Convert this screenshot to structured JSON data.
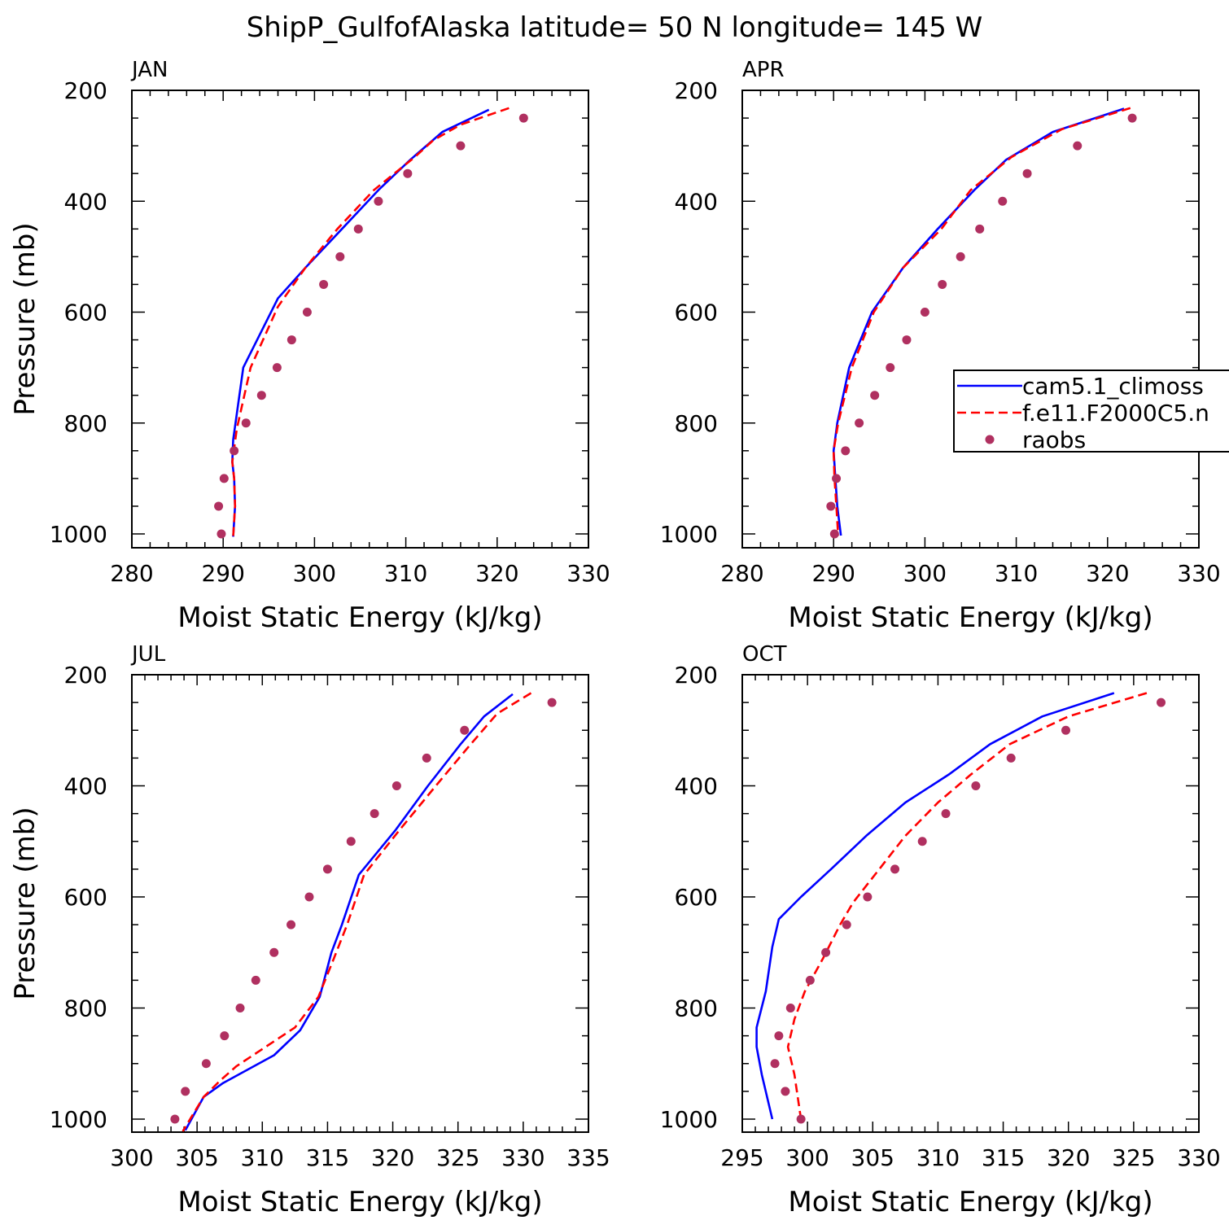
{
  "title": "ShipP_GulfofAlaska  latitude= 50 N longitude= 145 W",
  "colors": {
    "model1": "#0000ff",
    "model2": "#ff0000",
    "obs": "#b03060",
    "axes": "#000000"
  },
  "legend": {
    "placement": "right of APR panel",
    "entries": [
      {
        "label": "cam5.1_climoss",
        "style": "solid",
        "color_key": "model1"
      },
      {
        "label": "f.e11.F2000C5.n",
        "style": "dashed",
        "color_key": "model2"
      },
      {
        "label": "raobs",
        "style": "dots",
        "color_key": "obs"
      }
    ]
  },
  "chart_data": [
    {
      "panel": "JAN",
      "type": "line",
      "xlabel": "Moist Static Energy (kJ/kg)",
      "ylabel": "Pressure (mb)",
      "xlim": [
        280,
        330
      ],
      "ylim": [
        1025,
        200
      ],
      "y_reversed": true,
      "xticks": [
        "280",
        "290",
        "300",
        "310",
        "320",
        "330"
      ],
      "yticks": [
        "200",
        "400",
        "600",
        "800",
        "1000"
      ],
      "series": [
        {
          "key": "model1",
          "line": "solid",
          "points": [
            [
              319.1,
              235
            ],
            [
              314,
              275
            ],
            [
              310.5,
              325
            ],
            [
              307,
              380
            ],
            [
              303,
              450
            ],
            [
              299,
              520
            ],
            [
              296,
              575
            ],
            [
              292.2,
              700
            ],
            [
              291.1,
              830
            ],
            [
              291,
              870
            ],
            [
              291.2,
              900
            ],
            [
              291.3,
              950
            ],
            [
              291.1,
              1005
            ]
          ]
        },
        {
          "key": "model2",
          "line": "dashed",
          "points": [
            [
              321.3,
              232
            ],
            [
              316,
              262
            ],
            [
              313,
              290
            ],
            [
              311,
              320
            ],
            [
              306.5,
              380
            ],
            [
              302.5,
              450
            ],
            [
              299,
              520
            ],
            [
              296,
              590
            ],
            [
              293,
              700
            ],
            [
              291.5,
              810
            ],
            [
              291,
              870
            ],
            [
              291.2,
              900
            ],
            [
              291.3,
              950
            ],
            [
              291.1,
              1005
            ]
          ]
        },
        {
          "key": "obs",
          "line": "none",
          "points": [
            [
              322.9,
              250
            ],
            [
              316,
              300
            ],
            [
              310.2,
              350
            ],
            [
              307,
              400
            ],
            [
              304.8,
              450
            ],
            [
              302.8,
              500
            ],
            [
              301,
              550
            ],
            [
              299.2,
              600
            ],
            [
              297.5,
              650
            ],
            [
              295.9,
              700
            ],
            [
              294.2,
              750
            ],
            [
              292.5,
              800
            ],
            [
              291.2,
              850
            ],
            [
              290.1,
              900
            ],
            [
              289.5,
              950
            ],
            [
              289.8,
              1000
            ]
          ]
        }
      ]
    },
    {
      "panel": "APR",
      "type": "line",
      "xlabel": "Moist Static Energy (kJ/kg)",
      "ylabel": "",
      "xlim": [
        280,
        330
      ],
      "ylim": [
        1025,
        200
      ],
      "y_reversed": true,
      "xticks": [
        "280",
        "290",
        "300",
        "310",
        "320",
        "330"
      ],
      "yticks": [
        "200",
        "400",
        "600",
        "800",
        "1000"
      ],
      "series": [
        {
          "key": "model1",
          "line": "solid",
          "points": [
            [
              321.8,
              233
            ],
            [
              314,
              275
            ],
            [
              308.9,
              325
            ],
            [
              305.4,
              380
            ],
            [
              301.4,
              450
            ],
            [
              297.6,
              520
            ],
            [
              294.2,
              600
            ],
            [
              291.7,
              700
            ],
            [
              290.4,
              800
            ],
            [
              290,
              850
            ],
            [
              290.2,
              900
            ],
            [
              290.4,
              950
            ],
            [
              290.8,
              1003
            ]
          ]
        },
        {
          "key": "model2",
          "line": "dashed",
          "points": [
            [
              322.5,
              232
            ],
            [
              315,
              270
            ],
            [
              309.5,
              320
            ],
            [
              305,
              380
            ],
            [
              301.8,
              450
            ],
            [
              297.6,
              520
            ],
            [
              294.4,
              600
            ],
            [
              292,
              700
            ],
            [
              290.5,
              800
            ],
            [
              290,
              850
            ],
            [
              290.1,
              900
            ],
            [
              290.3,
              950
            ],
            [
              290.5,
              1003
            ]
          ]
        },
        {
          "key": "obs",
          "line": "none",
          "points": [
            [
              322.7,
              250
            ],
            [
              316.7,
              300
            ],
            [
              311.2,
              350
            ],
            [
              308.5,
              400
            ],
            [
              306,
              450
            ],
            [
              303.9,
              500
            ],
            [
              301.9,
              550
            ],
            [
              300,
              600
            ],
            [
              298,
              650
            ],
            [
              296.2,
              700
            ],
            [
              294.5,
              750
            ],
            [
              292.8,
              800
            ],
            [
              291.3,
              850
            ],
            [
              290.3,
              900
            ],
            [
              289.7,
              950
            ],
            [
              290.1,
              1000
            ]
          ]
        }
      ]
    },
    {
      "panel": "JUL",
      "type": "line",
      "xlabel": "Moist Static Energy (kJ/kg)",
      "ylabel": "Pressure (mb)",
      "xlim": [
        300,
        335
      ],
      "ylim": [
        1025,
        200
      ],
      "y_reversed": true,
      "xticks": [
        "300",
        "305",
        "310",
        "315",
        "320",
        "325",
        "330",
        "335"
      ],
      "yticks": [
        "200",
        "400",
        "600",
        "800",
        "1000"
      ],
      "series": [
        {
          "key": "model1",
          "line": "solid",
          "points": [
            [
              329.2,
              235
            ],
            [
              327,
              275
            ],
            [
              325.2,
              325
            ],
            [
              322.7,
              400
            ],
            [
              320.2,
              480
            ],
            [
              317.4,
              560
            ],
            [
              316.1,
              650
            ],
            [
              315.3,
              700
            ],
            [
              314.4,
              780
            ],
            [
              312.9,
              840
            ],
            [
              310.9,
              885
            ],
            [
              307,
              935
            ],
            [
              305.5,
              960
            ],
            [
              304.1,
              1020
            ]
          ]
        },
        {
          "key": "model2",
          "line": "dashed",
          "points": [
            [
              330.6,
              233
            ],
            [
              328,
              270
            ],
            [
              325.8,
              330
            ],
            [
              323.3,
              400
            ],
            [
              320.5,
              480
            ],
            [
              317.8,
              560
            ],
            [
              316.5,
              650
            ],
            [
              315.5,
              710
            ],
            [
              314.3,
              780
            ],
            [
              312.5,
              835
            ],
            [
              308,
              905
            ],
            [
              306.8,
              930
            ],
            [
              305.5,
              960
            ],
            [
              303.9,
              1022
            ]
          ]
        },
        {
          "key": "obs",
          "line": "none",
          "points": [
            [
              332.2,
              250
            ],
            [
              325.5,
              300
            ],
            [
              322.6,
              350
            ],
            [
              320.3,
              400
            ],
            [
              318.6,
              450
            ],
            [
              316.8,
              500
            ],
            [
              315,
              550
            ],
            [
              313.6,
              600
            ],
            [
              312.2,
              650
            ],
            [
              310.9,
              700
            ],
            [
              309.5,
              750
            ],
            [
              308.3,
              800
            ],
            [
              307.1,
              850
            ],
            [
              305.7,
              900
            ],
            [
              304.1,
              950
            ],
            [
              303.3,
              1000
            ]
          ]
        }
      ]
    },
    {
      "panel": "OCT",
      "type": "line",
      "xlabel": "Moist Static Energy (kJ/kg)",
      "ylabel": "",
      "xlim": [
        295,
        330
      ],
      "ylim": [
        1025,
        200
      ],
      "y_reversed": true,
      "xticks": [
        "295",
        "300",
        "305",
        "310",
        "315",
        "320",
        "325",
        "330"
      ],
      "yticks": [
        "200",
        "400",
        "600",
        "800",
        "1000"
      ],
      "series": [
        {
          "key": "model1",
          "line": "solid",
          "points": [
            [
              323.5,
              233
            ],
            [
              318,
              275
            ],
            [
              314,
              325
            ],
            [
              310.8,
              380
            ],
            [
              307.5,
              430
            ],
            [
              304.5,
              490
            ],
            [
              301.8,
              550
            ],
            [
              299.5,
              600
            ],
            [
              297.8,
              640
            ],
            [
              297.3,
              690
            ],
            [
              296.8,
              770
            ],
            [
              296.1,
              835
            ],
            [
              296.1,
              870
            ],
            [
              296.5,
              920
            ],
            [
              297.3,
              1000
            ]
          ]
        },
        {
          "key": "model2",
          "line": "dashed",
          "points": [
            [
              326,
              233
            ],
            [
              320,
              275
            ],
            [
              315.5,
              325
            ],
            [
              312.5,
              380
            ],
            [
              310,
              430
            ],
            [
              307.5,
              490
            ],
            [
              305.5,
              550
            ],
            [
              303.5,
              610
            ],
            [
              302.5,
              650
            ],
            [
              301.2,
              710
            ],
            [
              299.8,
              770
            ],
            [
              299,
              820
            ],
            [
              298.5,
              870
            ],
            [
              299,
              920
            ],
            [
              299.5,
              1000
            ]
          ]
        },
        {
          "key": "obs",
          "line": "none",
          "points": [
            [
              327.1,
              250
            ],
            [
              319.8,
              300
            ],
            [
              315.6,
              350
            ],
            [
              312.9,
              400
            ],
            [
              310.6,
              450
            ],
            [
              308.8,
              500
            ],
            [
              306.7,
              550
            ],
            [
              304.6,
              600
            ],
            [
              303,
              650
            ],
            [
              301.4,
              700
            ],
            [
              300.2,
              750
            ],
            [
              298.7,
              800
            ],
            [
              297.8,
              850
            ],
            [
              297.5,
              900
            ],
            [
              298.3,
              950
            ],
            [
              299.5,
              1000
            ]
          ]
        }
      ]
    }
  ]
}
